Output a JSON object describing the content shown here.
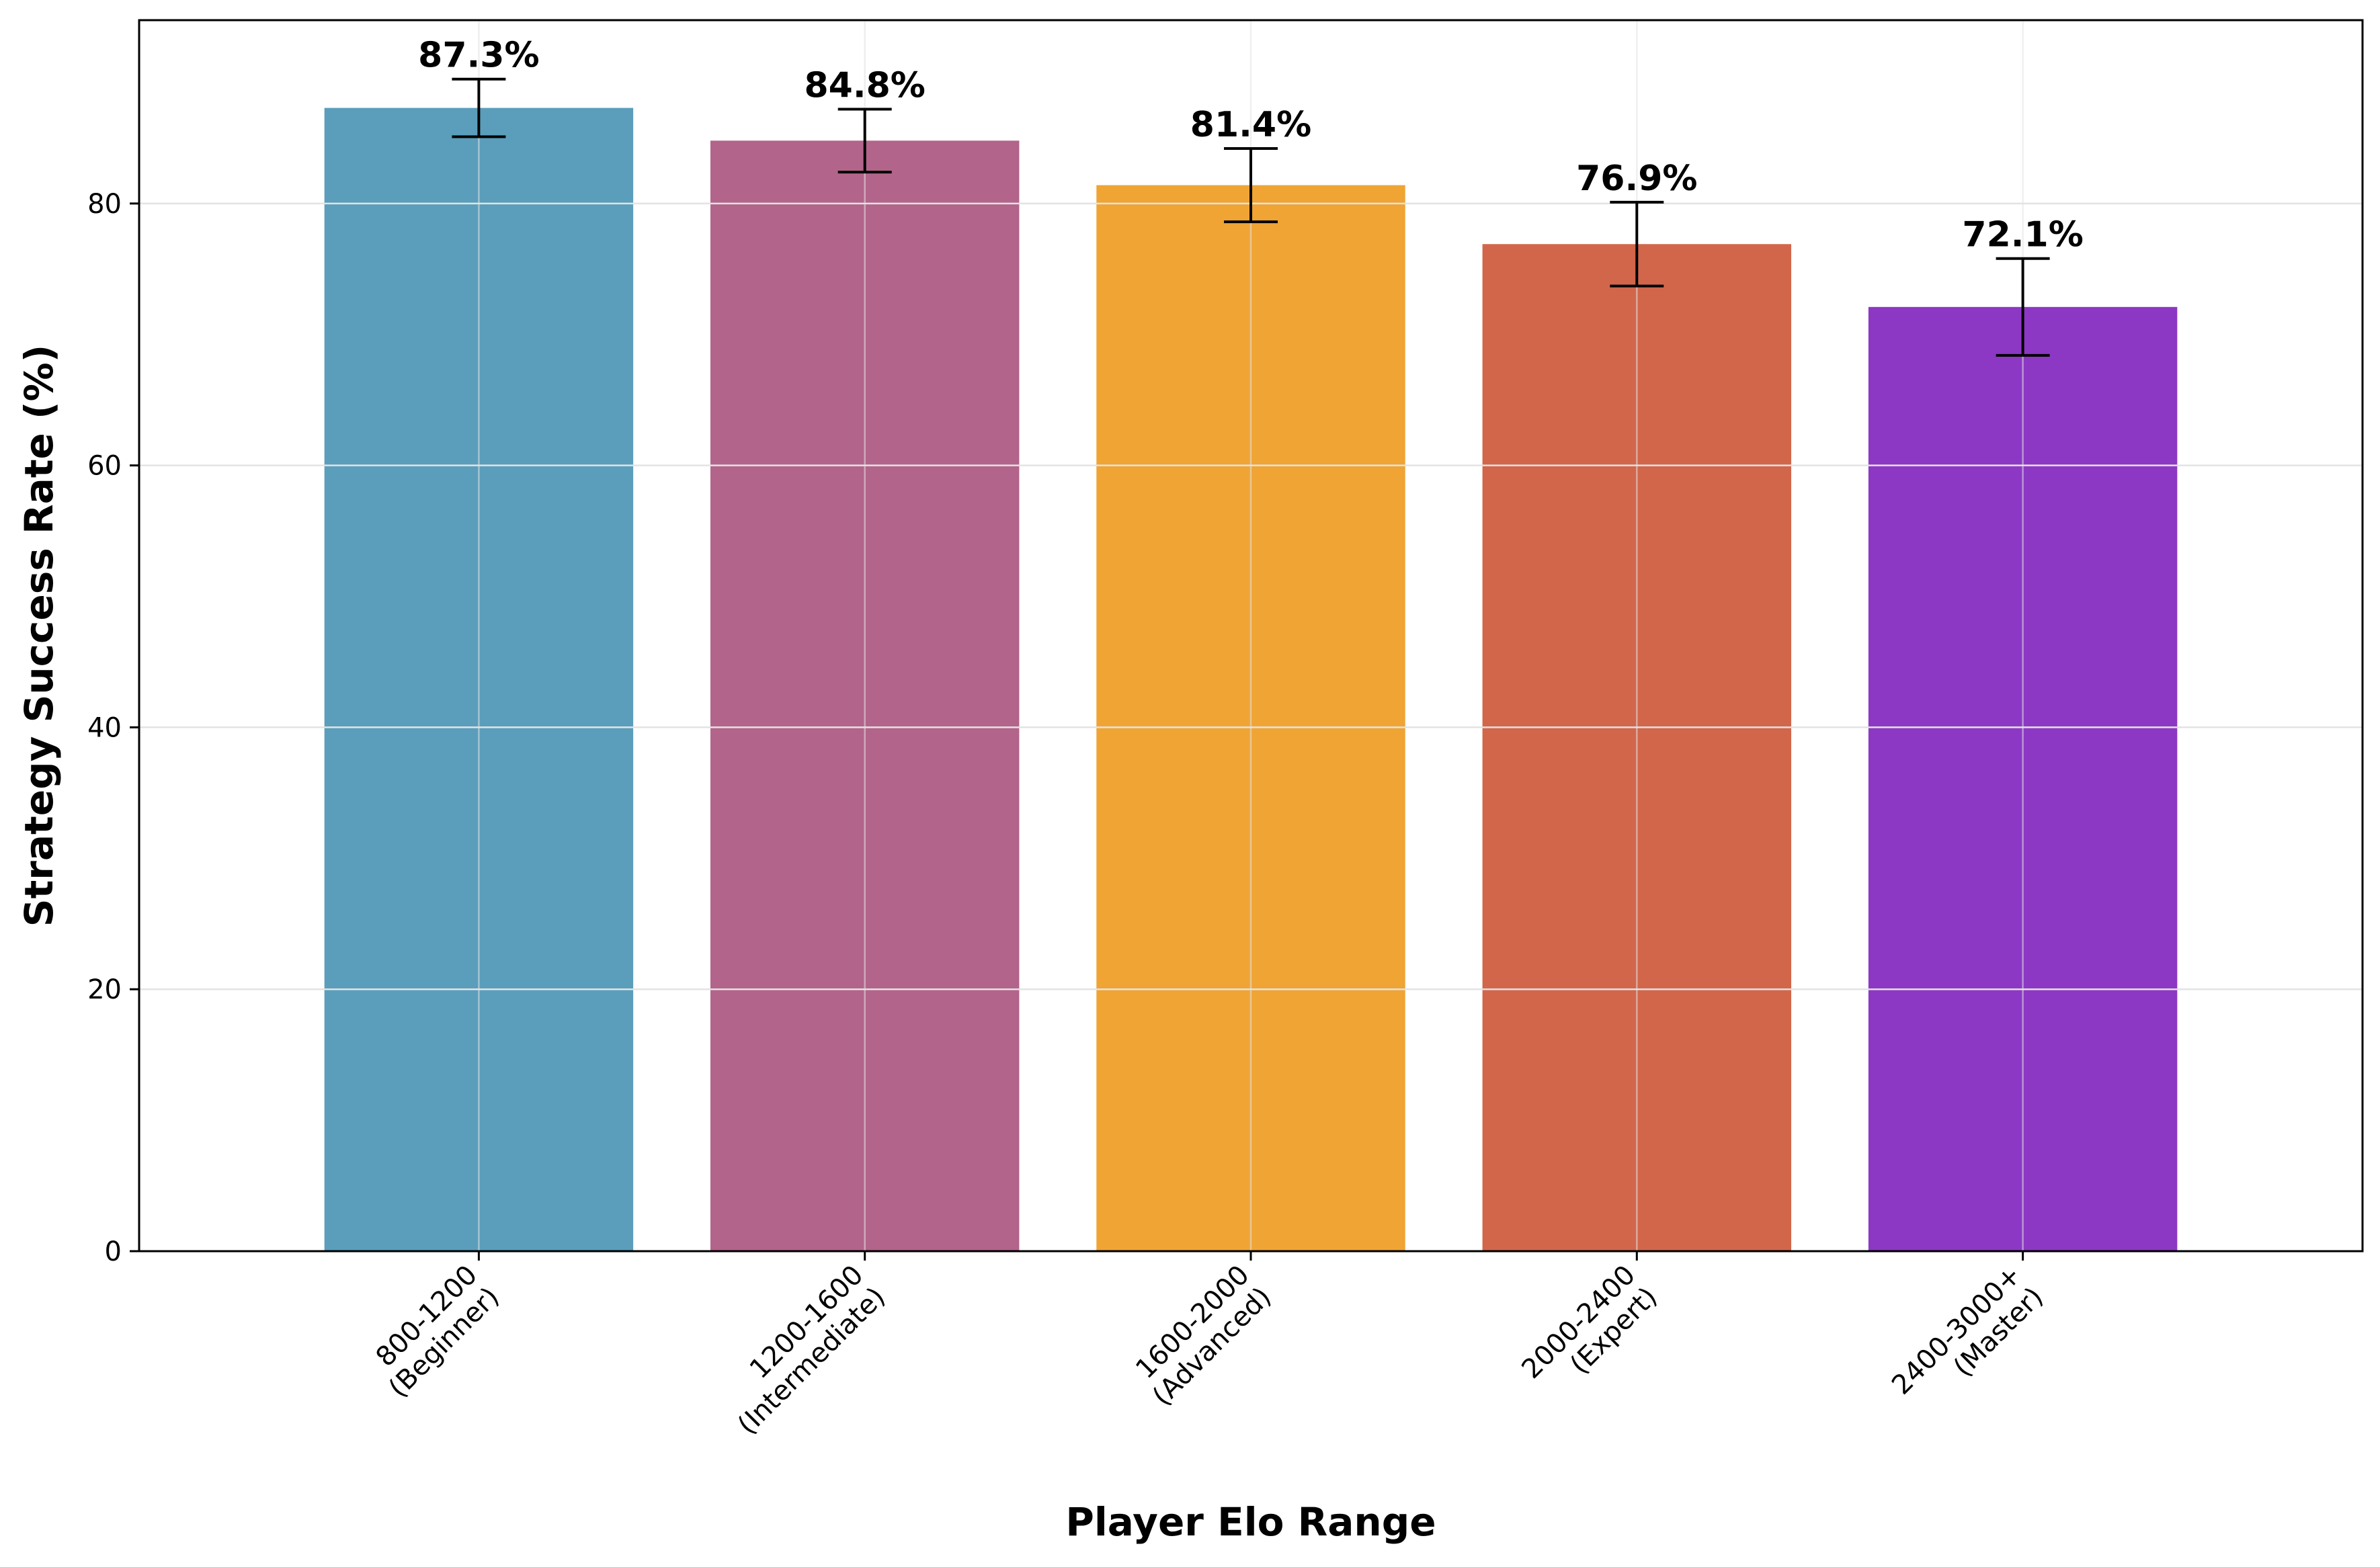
{
  "chart_data": {
    "type": "bar",
    "title": "",
    "xlabel": "Player Elo Range",
    "ylabel": "Strategy Success Rate (%)",
    "categories": [
      [
        "800-1200",
        "(Beginner)"
      ],
      [
        "1200-1600",
        "(Intermediate)"
      ],
      [
        "1600-2000",
        "(Advanced)"
      ],
      [
        "2000-2400",
        "(Expert)"
      ],
      [
        "2400-3000+",
        "(Master)"
      ]
    ],
    "values": [
      87.3,
      84.8,
      81.4,
      76.9,
      72.1
    ],
    "value_labels": [
      "87.3%",
      "84.8%",
      "81.4%",
      "76.9%",
      "72.1%"
    ],
    "errors": [
      2.2,
      2.4,
      2.8,
      3.2,
      3.7
    ],
    "colors": [
      "#5a9ebb",
      "#b3648a",
      "#f0a434",
      "#d2664b",
      "#8c38c4"
    ],
    "ylim": [
      0,
      94
    ],
    "yticks": [
      0,
      20,
      40,
      60,
      80
    ],
    "ytick_labels": [
      "0",
      "20",
      "40",
      "60",
      "80"
    ],
    "grid": true,
    "legend": "none"
  }
}
